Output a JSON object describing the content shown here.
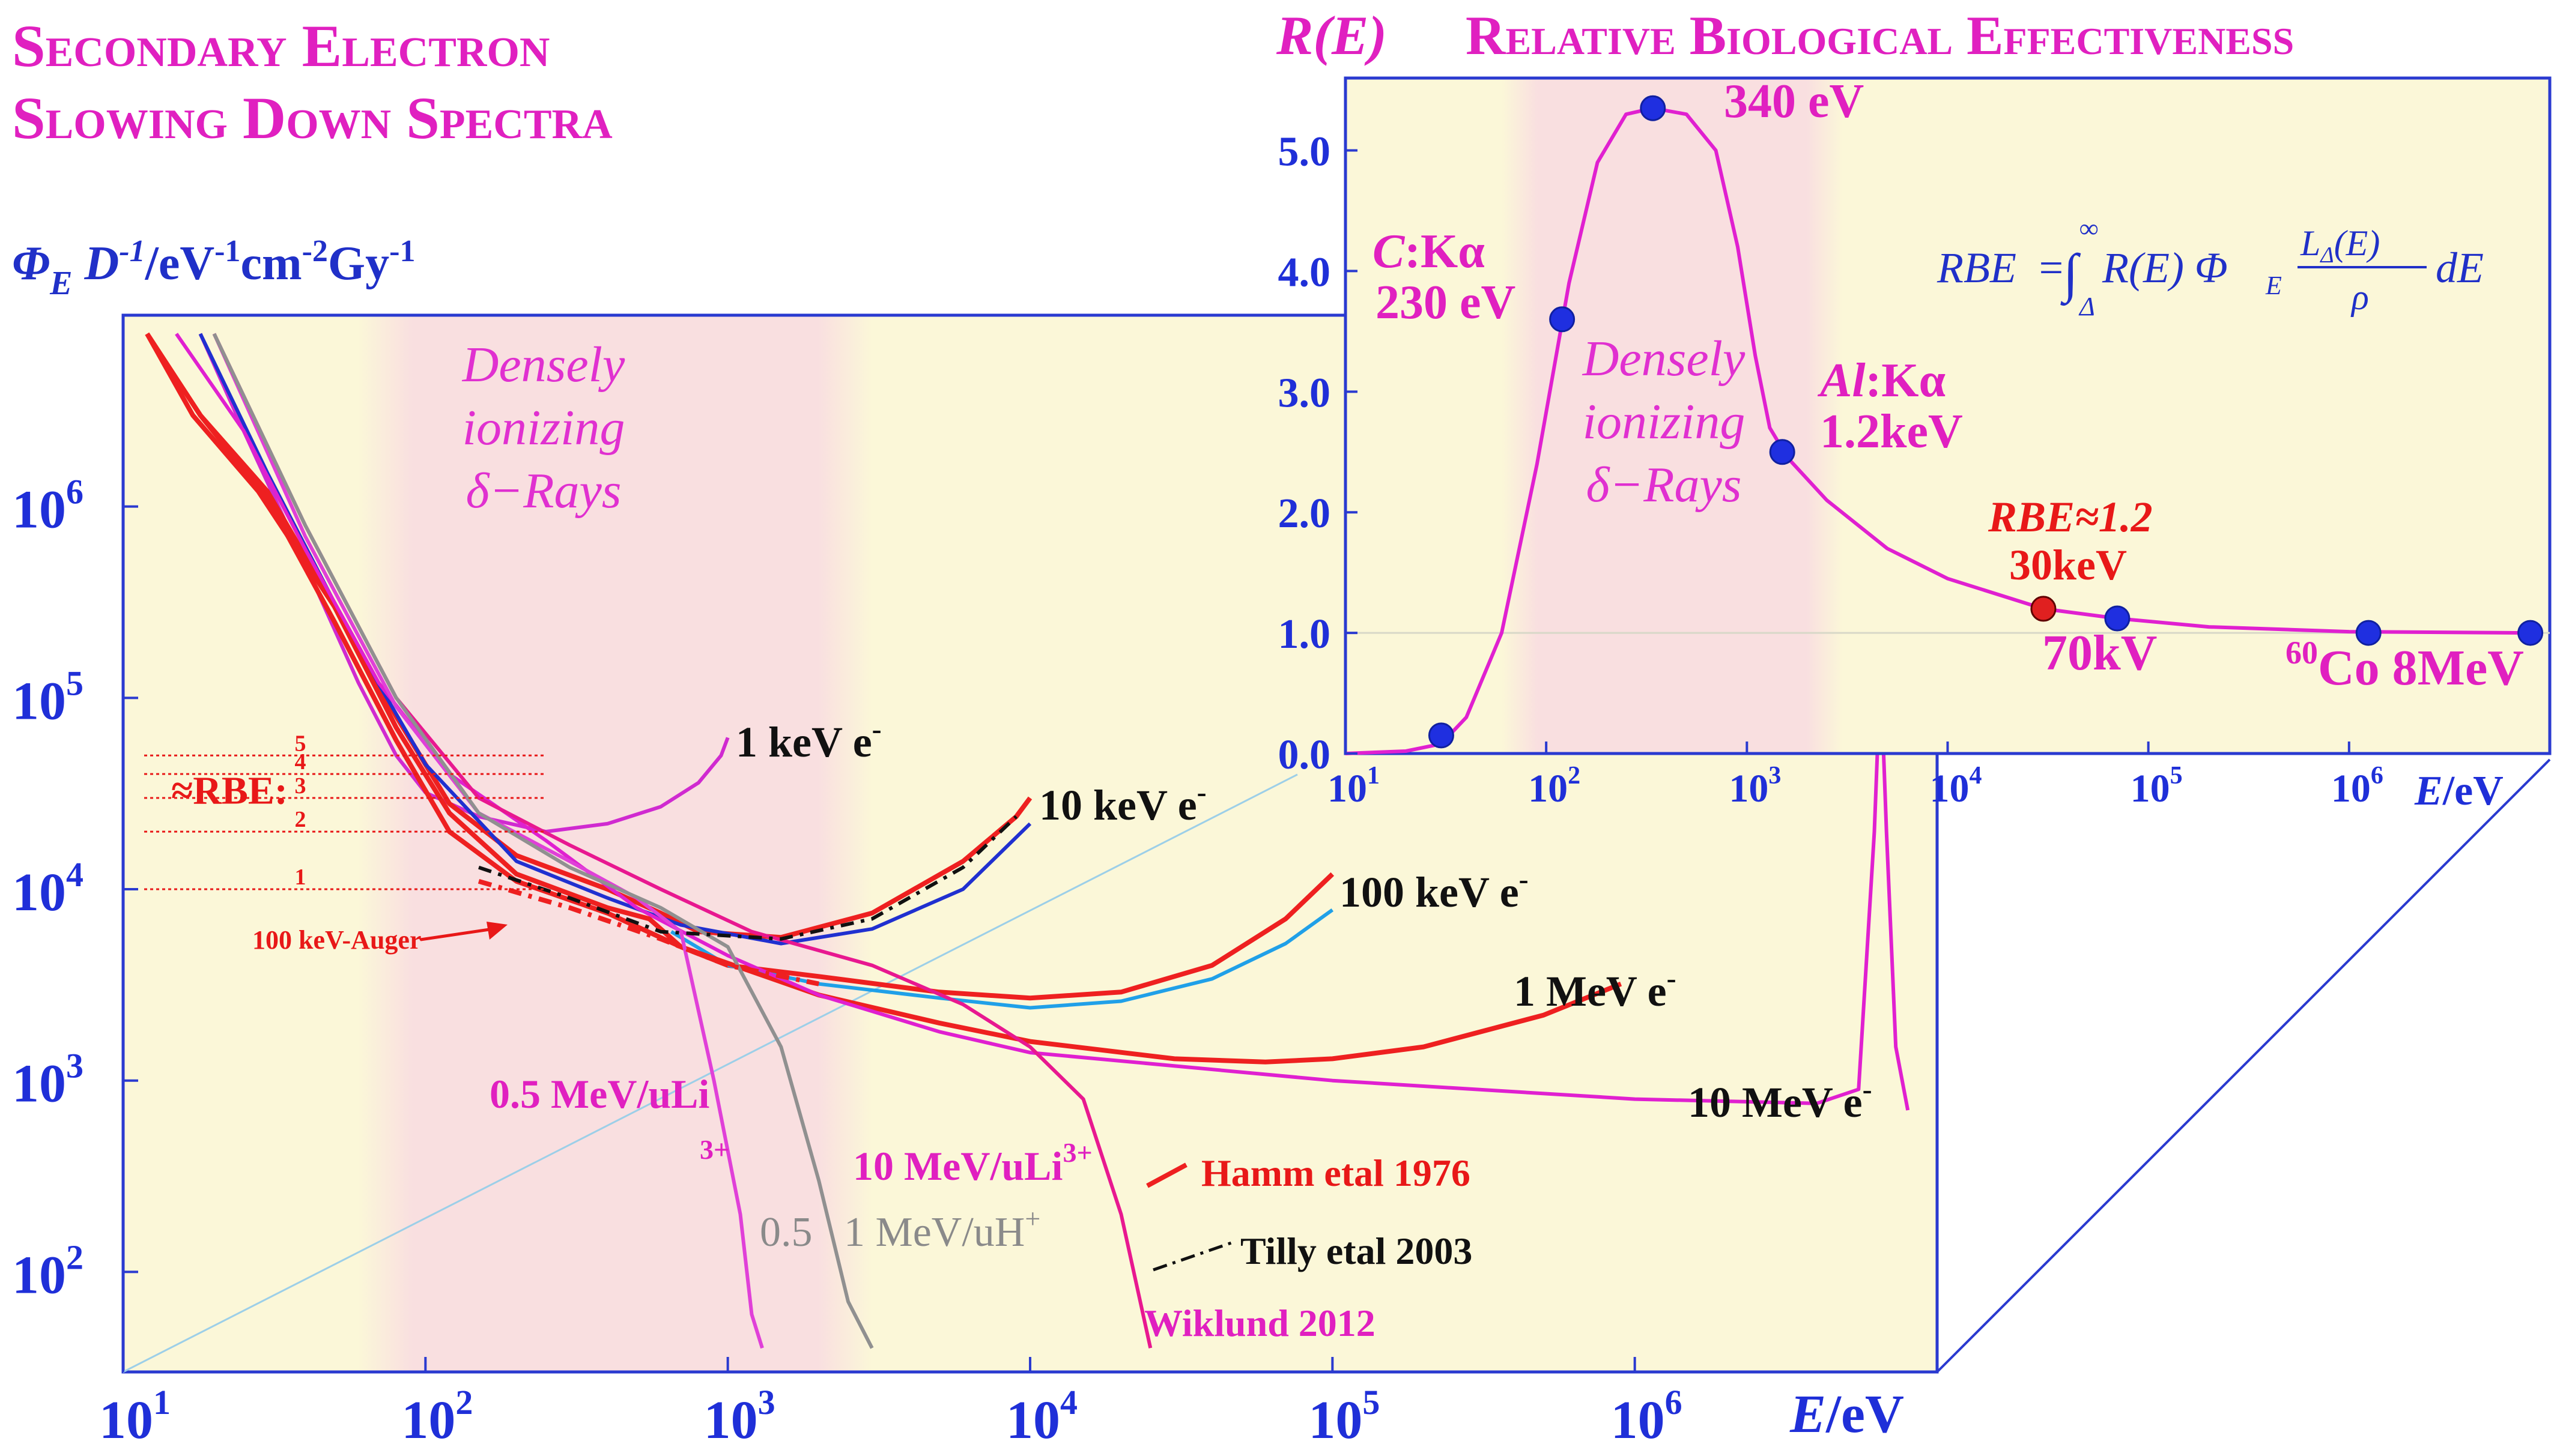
{
  "title_left": [
    "Secondary Electron",
    "Slowing Down Spectra"
  ],
  "title_right": "Relative Biological Effectiveness",
  "chart_data": [
    {
      "type": "line",
      "id": "main",
      "ylabel": "Φ_E D⁻¹/eV⁻¹cm⁻²Gy⁻¹",
      "xlabel": "E/eV",
      "x_scale": "log",
      "y_scale": "log",
      "xlim": [
        10,
        10000000
      ],
      "ylim": [
        30,
        10000000
      ],
      "x_ticks": [
        10,
        100,
        1000,
        10000,
        100000,
        1000000
      ],
      "x_tick_labels": [
        [
          "10",
          "1"
        ],
        [
          "10",
          "2"
        ],
        [
          "10",
          "3"
        ],
        [
          "10",
          "4"
        ],
        [
          "10",
          "5"
        ],
        [
          "10",
          "6"
        ]
      ],
      "y_ticks": [
        100,
        1000,
        10000,
        100000,
        1000000
      ],
      "y_tick_labels": [
        [
          "10",
          "2"
        ],
        [
          "10",
          "3"
        ],
        [
          "10",
          "4"
        ],
        [
          "10",
          "5"
        ],
        [
          "10",
          "6"
        ]
      ],
      "shaded_region": {
        "x": [
          60,
          3000
        ],
        "label": [
          "Densely",
          "ionizing",
          "δ−Rays"
        ]
      },
      "rbe_levels": {
        "label": "≈RBE:",
        "levels": [
          "1",
          "2",
          "3",
          "4",
          "5"
        ],
        "values": [
          10000,
          20000,
          30000,
          40000,
          50000
        ],
        "x_end": 250
      },
      "series": [
        {
          "name": "1 keV e⁻",
          "color": "#d02ad0",
          "points": [
            [
              18,
              8000000
            ],
            [
              25,
              2500000
            ],
            [
              40,
              500000
            ],
            [
              60,
              120000
            ],
            [
              80,
              50000
            ],
            [
              100,
              32000
            ],
            [
              150,
              24000
            ],
            [
              250,
              20000
            ],
            [
              400,
              22000
            ],
            [
              600,
              27000
            ],
            [
              800,
              36000
            ],
            [
              950,
              50000
            ],
            [
              1000,
              62000
            ]
          ]
        },
        {
          "name": "10 keV e⁻",
          "color": "#ee2020",
          "points": [
            [
              12,
              8000000
            ],
            [
              17,
              3000000
            ],
            [
              28,
              1200000
            ],
            [
              50,
              300000
            ],
            [
              80,
              80000
            ],
            [
              120,
              28000
            ],
            [
              200,
              15000
            ],
            [
              400,
              10000
            ],
            [
              600,
              7500
            ],
            [
              800,
              6000
            ],
            [
              1500,
              5600
            ],
            [
              3000,
              7500
            ],
            [
              6000,
              14000
            ],
            [
              9000,
              24000
            ],
            [
              10000,
              30000
            ]
          ]
        },
        {
          "name": "10 keV e⁻ (blue)",
          "color": "#2030d0",
          "points": [
            [
              18,
              8000000
            ],
            [
              30,
              1500000
            ],
            [
              60,
              180000
            ],
            [
              100,
              45000
            ],
            [
              200,
              14000
            ],
            [
              400,
              9000
            ],
            [
              700,
              6500
            ],
            [
              1500,
              5200
            ],
            [
              3000,
              6200
            ],
            [
              6000,
              10000
            ],
            [
              10000,
              22000
            ]
          ]
        },
        {
          "name": "100 keV e⁻",
          "color": "#ee2020",
          "points": [
            [
              12,
              8000000
            ],
            [
              18,
              3000000
            ],
            [
              30,
              1200000
            ],
            [
              50,
              300000
            ],
            [
              80,
              70000
            ],
            [
              120,
              25000
            ],
            [
              200,
              12000
            ],
            [
              400,
              8000
            ],
            [
              550,
              7000
            ],
            [
              700,
              5000
            ],
            [
              1000,
              4000
            ],
            [
              2000,
              3500
            ],
            [
              5000,
              2900
            ],
            [
              10000,
              2700
            ],
            [
              20000,
              2900
            ],
            [
              40000,
              4000
            ],
            [
              70000,
              7000
            ],
            [
              100000,
              12000
            ]
          ]
        },
        {
          "name": "100 keV e⁻ (sky)",
          "color": "#20a0e8",
          "points": [
            [
              650,
              6000
            ],
            [
              1000,
              4000
            ],
            [
              2000,
              3200
            ],
            [
              5000,
              2700
            ],
            [
              10000,
              2400
            ],
            [
              20000,
              2600
            ],
            [
              40000,
              3400
            ],
            [
              70000,
              5200
            ],
            [
              100000,
              7800
            ]
          ]
        },
        {
          "name": "1 MeV e⁻",
          "color": "#ee2020",
          "points": [
            [
              12,
              8000000
            ],
            [
              18,
              3000000
            ],
            [
              30,
              1100000
            ],
            [
              50,
              250000
            ],
            [
              80,
              60000
            ],
            [
              120,
              20000
            ],
            [
              200,
              11000
            ],
            [
              400,
              7500
            ],
            [
              700,
              5000
            ],
            [
              2000,
              2800
            ],
            [
              5000,
              2000
            ],
            [
              10000,
              1600
            ],
            [
              30000,
              1300
            ],
            [
              60000,
              1250
            ],
            [
              100000,
              1300
            ],
            [
              200000,
              1500
            ],
            [
              500000,
              2200
            ],
            [
              900000,
              3200
            ]
          ]
        },
        {
          "name": "10 MeV e⁻",
          "color": "#e020d0",
          "points": [
            [
              15,
              8000000
            ],
            [
              25,
              2500000
            ],
            [
              40,
              600000
            ],
            [
              70,
              120000
            ],
            [
              120,
              40000
            ],
            [
              250,
              18000
            ],
            [
              500,
              8000
            ],
            [
              1000,
              4500
            ],
            [
              2000,
              2800
            ],
            [
              5000,
              1800
            ],
            [
              10000,
              1400
            ],
            [
              100000,
              1000
            ],
            [
              1000000,
              800
            ],
            [
              4000000,
              760
            ],
            [
              5500000,
              900
            ],
            [
              6200000,
              20000
            ],
            [
              6500000,
              140000
            ],
            [
              6800000,
              20000
            ],
            [
              7300000,
              1500
            ],
            [
              8000000,
              700
            ]
          ]
        },
        {
          "name": "0.5 MeV/uLi 3+",
          "color": "#e040d8",
          "points": [
            [
              20,
              8000000
            ],
            [
              40,
              700000
            ],
            [
              80,
              90000
            ],
            [
              150,
              25000
            ],
            [
              300,
              14000
            ],
            [
              500,
              9000
            ],
            [
              700,
              6000
            ],
            [
              900,
              1000
            ],
            [
              1100,
              200
            ],
            [
              1200,
              60
            ],
            [
              1300,
              40
            ]
          ]
        },
        {
          "name": "10 MeV/uLi 3+",
          "color": "#e81890",
          "points": [
            [
              20,
              8000000
            ],
            [
              40,
              800000
            ],
            [
              80,
              100000
            ],
            [
              150,
              30000
            ],
            [
              300,
              17000
            ],
            [
              600,
              10000
            ],
            [
              1200,
              6000
            ],
            [
              3000,
              4000
            ],
            [
              6000,
              2500
            ],
            [
              10000,
              1500
            ],
            [
              15000,
              800
            ],
            [
              20000,
              200
            ],
            [
              25000,
              40
            ]
          ]
        },
        {
          "name": "0.5 1 MeV/uH⁺",
          "color": "#909090",
          "points": [
            [
              20,
              8000000
            ],
            [
              40,
              800000
            ],
            [
              80,
              100000
            ],
            [
              150,
              25000
            ],
            [
              300,
              13000
            ],
            [
              600,
              8000
            ],
            [
              1000,
              5000
            ],
            [
              1500,
              1500
            ],
            [
              2000,
              300
            ],
            [
              2500,
              70
            ],
            [
              3000,
              40
            ]
          ]
        },
        {
          "name": "Hamm etal 1976",
          "color": "#ee2020",
          "dashed": true,
          "points": [
            [
              150,
              11000
            ],
            [
              300,
              8000
            ],
            [
              600,
              5500
            ],
            [
              1000,
              4000
            ],
            [
              2000,
              3200
            ]
          ]
        },
        {
          "name": "Tilly etal 2003",
          "color": "#111111",
          "dashed": true,
          "points": [
            [
              150,
              13000
            ],
            [
              300,
              9000
            ],
            [
              600,
              6000
            ],
            [
              1500,
              5500
            ],
            [
              3000,
              7000
            ],
            [
              6000,
              13000
            ],
            [
              9000,
              24000
            ]
          ]
        }
      ],
      "labels": {
        "1keV": "1 keV e",
        "10keV": "10 keV e",
        "100keV": "100 keV e",
        "1MeV": "1 MeV e",
        "10MeV": "10 MeV e",
        "li05": "0.5 MeV/uLi",
        "li05_sup": "3+",
        "li10": "10 MeV/uLi",
        "li10_sup": "3+",
        "h_05": "0.5",
        "h_1": "1 MeV/uH",
        "h_sup": "+",
        "auger": "100 keV-Auger",
        "hamm": "Hamm etal 1976",
        "tilly": "Tilly etal 2003",
        "wiklund": "Wiklund 2012"
      }
    },
    {
      "type": "line",
      "id": "inset",
      "ylabel": "R(E)",
      "xlabel": "E/eV",
      "x_scale": "log",
      "xlim": [
        10,
        10000000
      ],
      "ylim": [
        0,
        5.6
      ],
      "x_ticks": [
        10,
        100,
        1000,
        10000,
        100000,
        1000000
      ],
      "x_tick_labels": [
        [
          "10",
          "1"
        ],
        [
          "10",
          "2"
        ],
        [
          "10",
          "3"
        ],
        [
          "10",
          "4"
        ],
        [
          "10",
          "5"
        ],
        [
          "10",
          "6"
        ]
      ],
      "y_ticks": [
        0,
        1,
        2,
        3,
        4,
        5
      ],
      "y_tick_labels": [
        "0.0",
        "1.0",
        "2.0",
        "3.0",
        "4.0",
        "5.0"
      ],
      "shaded_region": {
        "x": [
          60,
          3000
        ],
        "label": [
          "Densely",
          "ionizing",
          "δ−Rays"
        ]
      },
      "curve_points": [
        [
          10,
          0
        ],
        [
          20,
          0.02
        ],
        [
          30,
          0.08
        ],
        [
          40,
          0.3
        ],
        [
          60,
          1.0
        ],
        [
          90,
          2.4
        ],
        [
          130,
          3.9
        ],
        [
          180,
          4.9
        ],
        [
          250,
          5.3
        ],
        [
          340,
          5.35
        ],
        [
          500,
          5.3
        ],
        [
          700,
          5.0
        ],
        [
          900,
          4.2
        ],
        [
          1100,
          3.3
        ],
        [
          1300,
          2.7
        ],
        [
          1600,
          2.45
        ],
        [
          2500,
          2.1
        ],
        [
          5000,
          1.7
        ],
        [
          10000,
          1.45
        ],
        [
          30000,
          1.2
        ],
        [
          70000,
          1.12
        ],
        [
          200000,
          1.05
        ],
        [
          1000000,
          1.01
        ],
        [
          8000000,
          1.0
        ]
      ],
      "points": [
        {
          "x": 30,
          "y": 0.15,
          "color": "#1f2fe0"
        },
        {
          "x": 120,
          "y": 3.6,
          "color": "#1f2fe0"
        },
        {
          "x": 340,
          "y": 5.35,
          "color": "#1f2fe0"
        },
        {
          "x": 1500,
          "y": 2.5,
          "color": "#1f2fe0"
        },
        {
          "x": 30000,
          "y": 1.2,
          "color": "#e02020"
        },
        {
          "x": 70000,
          "y": 1.12,
          "color": "#1f2fe0"
        },
        {
          "x": 1250000,
          "y": 1.0,
          "color": "#1f2fe0"
        },
        {
          "x": 8000000,
          "y": 1.0,
          "color": "#1f2fe0"
        }
      ],
      "annotations": {
        "p340": "340 eV",
        "ck_elem": "C",
        "ck_line": ":Kα",
        "ck_energy": "230 eV",
        "al_elem": "Al",
        "al_line": ":Kα",
        "al_energy": "1.2keV",
        "rbe_val": "RBE≈1.2",
        "rbe_energy": "30keV",
        "kv70": "70kV",
        "co_sup": "60",
        "co_text": "Co 8MeV"
      },
      "equation": {
        "lhs": "RBE",
        "integral_top": "∞",
        "integral_bottom": "Δ",
        "body": "R(E) Φ",
        "phi_sub": "E",
        "frac_num": "L",
        "frac_num_sub": "Δ",
        "frac_num_arg": "(E)",
        "frac_den": "ρ",
        "tail": "dE"
      }
    }
  ]
}
